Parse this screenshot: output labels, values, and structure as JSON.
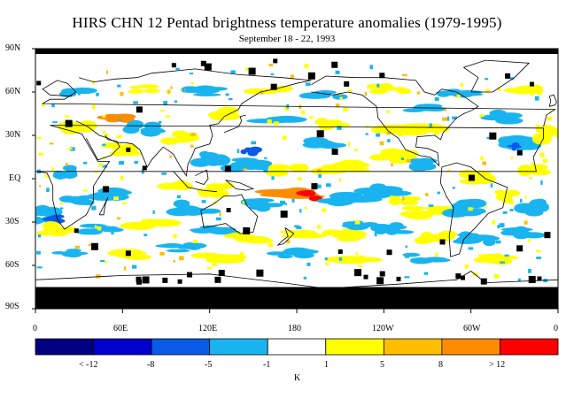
{
  "title": "HIRS CHN 12 Pentad brightness temperature anomalies (1979-1995)",
  "subtitle": "September 18 - 22, 1993",
  "lat_labels": [
    "90N",
    "60N",
    "30N",
    "EQ",
    "30S",
    "60S",
    "90S"
  ],
  "lon_labels": [
    "0",
    "60E",
    "120E",
    "180",
    "120W",
    "60W",
    "0"
  ],
  "colorbar": {
    "colors": [
      "#000080",
      "#0000cc",
      "#0a5ae6",
      "#19b4f0",
      "#ffffff",
      "#ffff00",
      "#ffbe00",
      "#ff8c00",
      "#ff0000"
    ],
    "labels": [
      "< -12",
      "-8",
      "-5",
      "-1",
      "1",
      "5",
      "8",
      "> 12"
    ],
    "unit": "K"
  },
  "map": {
    "colors": {
      "ocean_neutral": "#ffffff",
      "missing": "#000000",
      "coast": "#000000"
    }
  }
}
